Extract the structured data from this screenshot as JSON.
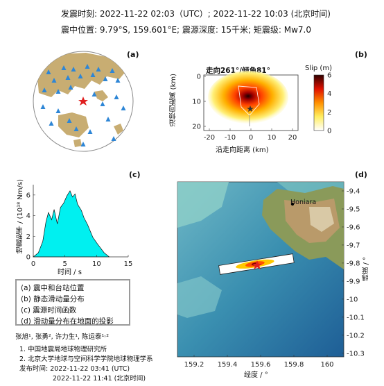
{
  "header": {
    "line1": "发震时刻: 2022-11-22 02:03（UTC）;    2022-11-22  10:03 (北京时间)",
    "line2": "震中位置: 9.79°S,  159.601°E;  震源深度: 15千米; 矩震级: Mw7.0"
  },
  "panel_a": {
    "label": "(a)"
  },
  "panel_b": {
    "label": "(b)",
    "title": "走向261°/倾角81°",
    "colorbar_title": "Slip (m)",
    "colorbar_ticks": [
      "0",
      "2",
      "4",
      "6"
    ],
    "xlabel": "沿走向距离 (km)",
    "ylabel": "沿倾向距离 (km)",
    "xticks": [
      "-20",
      "-10",
      "0",
      "10",
      "20"
    ],
    "yticks": [
      "0",
      "10",
      "20"
    ]
  },
  "panel_c": {
    "label": "(c)",
    "xlabel": "时间 / s",
    "ylabel": "地震矩率 / (10¹⁸ Nm/s)",
    "xticks": [
      "0",
      "5",
      "10",
      "15"
    ],
    "yticks": [
      "0",
      "2",
      "4",
      "6"
    ]
  },
  "panel_d": {
    "label": "(d)",
    "city": "Honiara",
    "xlabel": "经度 / °",
    "ylabel": "纬度 / °",
    "xticks": [
      "159.2",
      "159.4",
      "159.6",
      "159.8",
      "160"
    ],
    "yticks": [
      "-9.4",
      "-9.5",
      "-9.6",
      "-9.7",
      "-9.8",
      "-9.9",
      "-10",
      "-10.1",
      "-10.2",
      "-10.3"
    ]
  },
  "legend": {
    "items": [
      "(a) 震中和台站位置",
      "(b) 静态滑动量分布",
      "(c) 震源时间函数",
      "(d) 滑动量分布在地面的投影"
    ]
  },
  "credits": {
    "authors": "张旭¹, 张勇², 许力生¹, 陈运泰¹˒²",
    "affil1": "1. 中国地震局地球物理研究所",
    "affil2": "2. 北京大学地球与空间科学学院地球物理学系",
    "release1": "发布时间:  2022-11-22  03:41 (UTC)",
    "release2": "2022-11-22  11:41 (北京时间)"
  },
  "colors": {
    "stations": "#2e86d6",
    "epicenter": "#e02020",
    "land": "#c8ad72",
    "stf_fill": "#00f0f0"
  }
}
